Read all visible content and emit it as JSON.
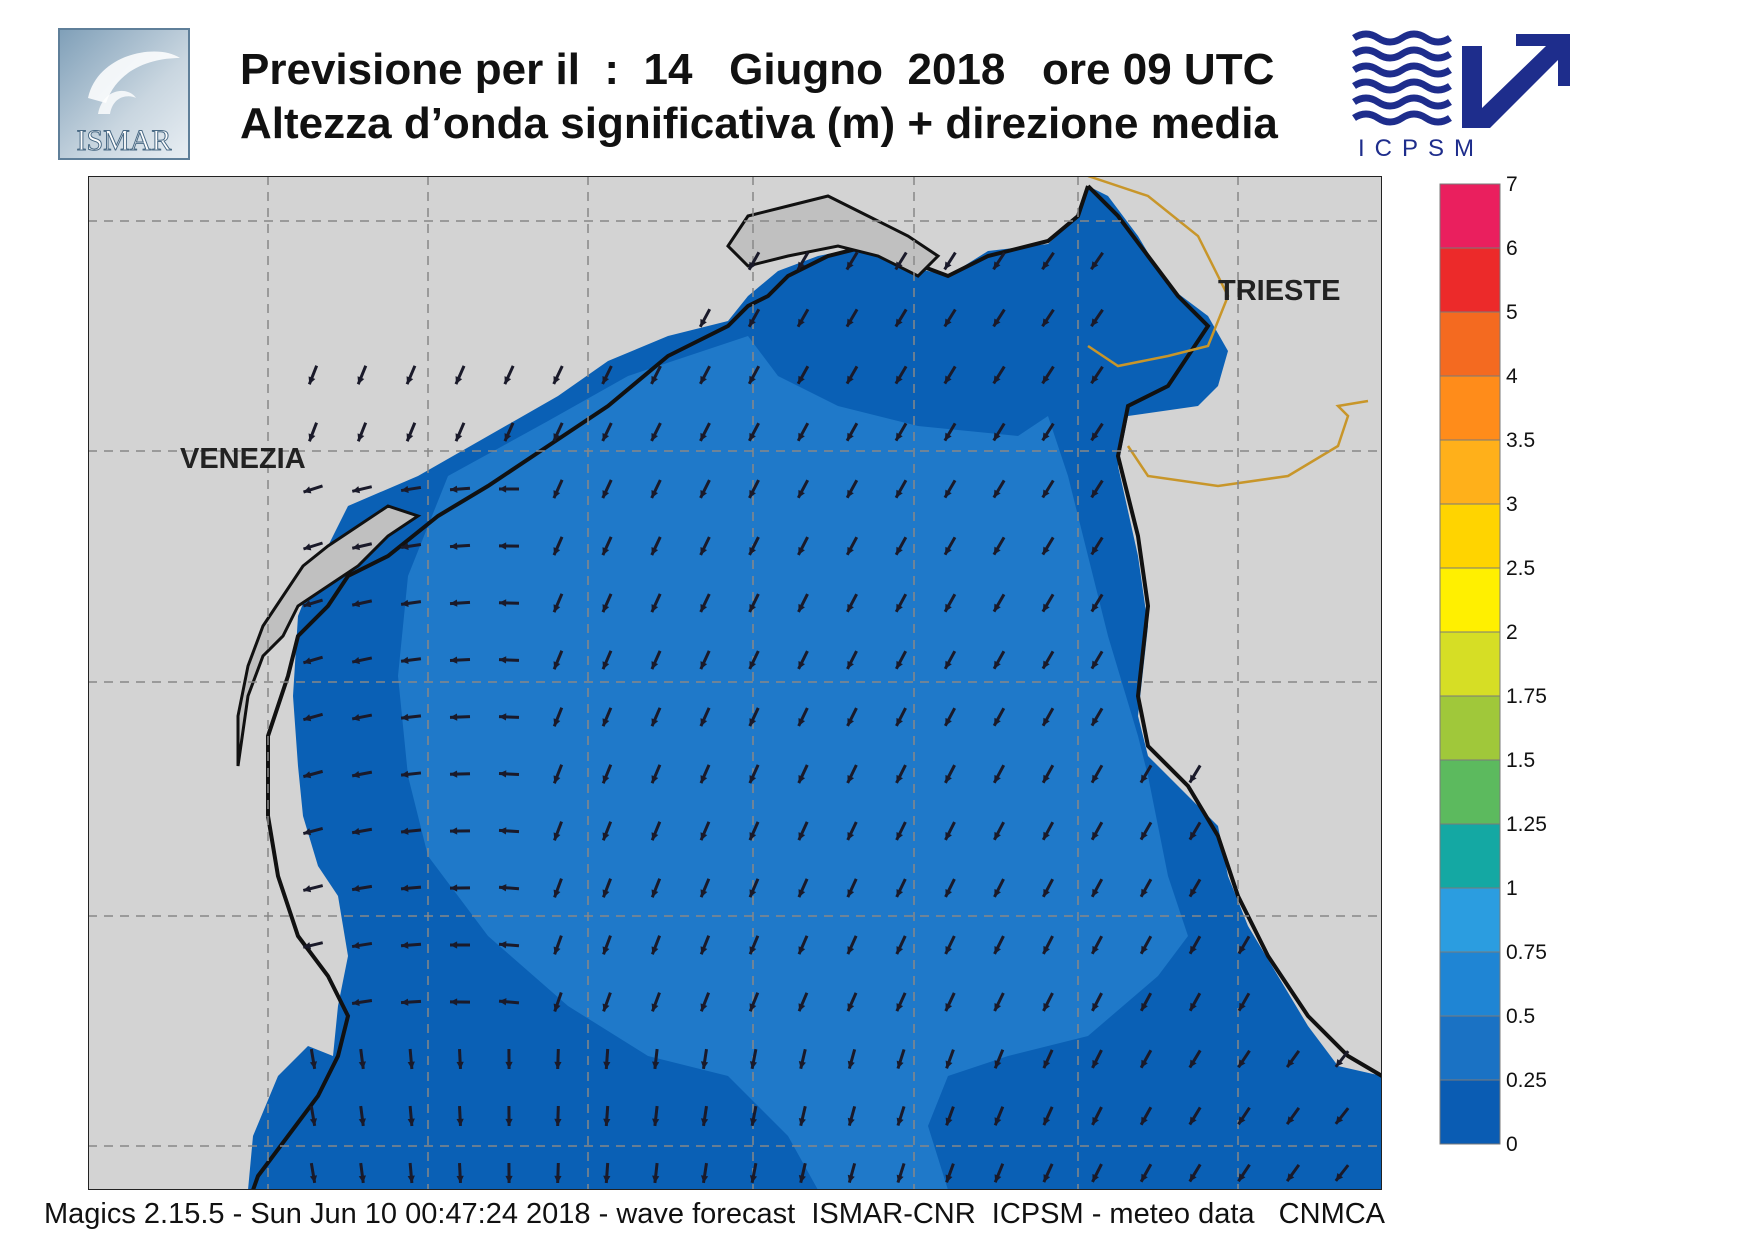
{
  "header": {
    "title_line1": "Previsione per il  :  14   Giugno  2018   ore 09 UTC",
    "title_line2": "Altezza d’onda significativa (m) + direzione media"
  },
  "logos": {
    "left_text": "ISMAR",
    "right_text": "ICPSM"
  },
  "map": {
    "cities": [
      "VENEZIA",
      "TRIESTE"
    ],
    "colors": {
      "land": "#d3d3d3",
      "sea_dark": "#0a60b5",
      "sea_mid": "#1f79c9",
      "border": "#c8962a",
      "arrow": "#1a1a2a"
    },
    "wave_direction_note_units": "m"
  },
  "colorbar": {
    "levels": [
      "0",
      "0.25",
      "0.5",
      "0.75",
      "1",
      "1.25",
      "1.5",
      "1.75",
      "2",
      "2.5",
      "3",
      "3.5",
      "4",
      "5",
      "6",
      "7"
    ],
    "colors": [
      "#0a5cb3",
      "#1a72c4",
      "#1f85d4",
      "#2b9de0",
      "#14a8a3",
      "#5cba5e",
      "#a0c83a",
      "#d6de25",
      "#fff000",
      "#ffd400",
      "#ffb01a",
      "#ff8c1a",
      "#f46a20",
      "#ec2a2a",
      "#ea1f5e"
    ]
  },
  "footer": {
    "text": "Magics 2.15.5 - Sun Jun 10 00:47:24 2018 - wave forecast  ISMAR-CNR  ICPSM - meteo data   CNMCA"
  }
}
